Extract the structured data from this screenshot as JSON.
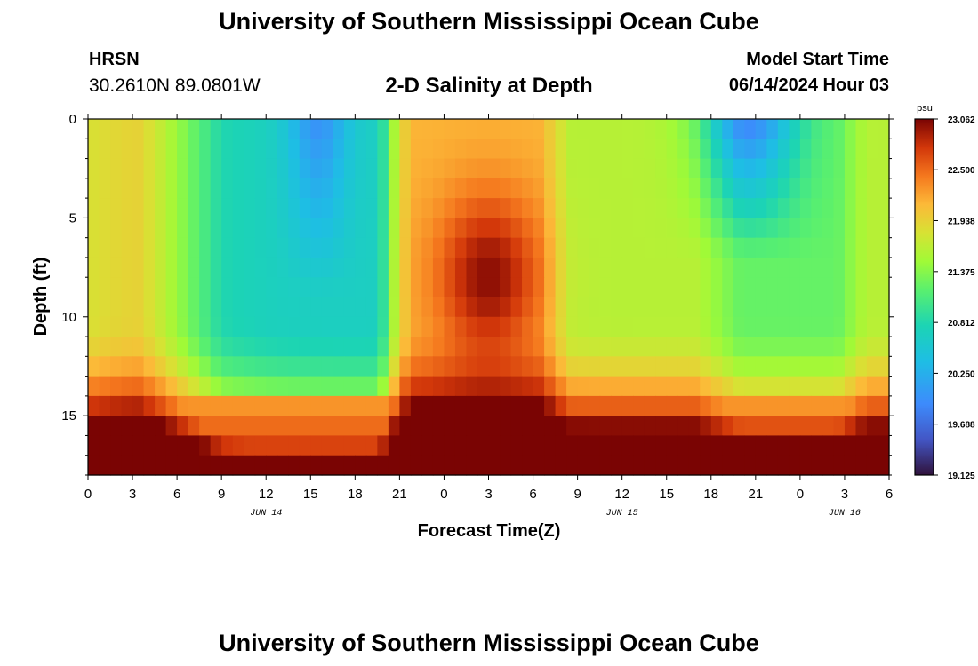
{
  "header": {
    "title": "University of Southern Mississippi Ocean Cube",
    "station": "HRSN",
    "coordinates": "30.2610N  89.0801W",
    "subtitle": "2-D Salinity at Depth",
    "model_start_label": "Model Start Time",
    "model_start_value": "06/14/2024 Hour 03"
  },
  "footer": {
    "title": "University of Southern Mississippi Ocean Cube"
  },
  "chart_data": {
    "type": "heatmap",
    "title": "2-D Salinity at Depth",
    "xlabel": "Forecast Time(Z)",
    "ylabel": "Depth (ft)",
    "x_range_hours": [
      0,
      54
    ],
    "y_range_ft": [
      0,
      18
    ],
    "x_tick_labels": [
      "0",
      "3",
      "6",
      "9",
      "12",
      "15",
      "18",
      "21",
      "0",
      "3",
      "6",
      "9",
      "12",
      "15",
      "18",
      "21",
      "0",
      "3",
      "6"
    ],
    "x_tick_hours": [
      0,
      3,
      6,
      9,
      12,
      15,
      18,
      21,
      24,
      27,
      30,
      33,
      36,
      39,
      42,
      45,
      48,
      51,
      54
    ],
    "date_labels": [
      {
        "text": "JUN 14",
        "hour": 12
      },
      {
        "text": "JUN 15",
        "hour": 36
      },
      {
        "text": "JUN 16",
        "hour": 51
      }
    ],
    "y_ticks": [
      0,
      5,
      10,
      15
    ],
    "colorbar": {
      "unit": "psu",
      "min": 19.125,
      "max": 23.062,
      "tick_labels": [
        "23.062",
        "22.500",
        "21.938",
        "21.375",
        "20.812",
        "20.250",
        "19.688",
        "19.125"
      ]
    },
    "grid": false
  }
}
